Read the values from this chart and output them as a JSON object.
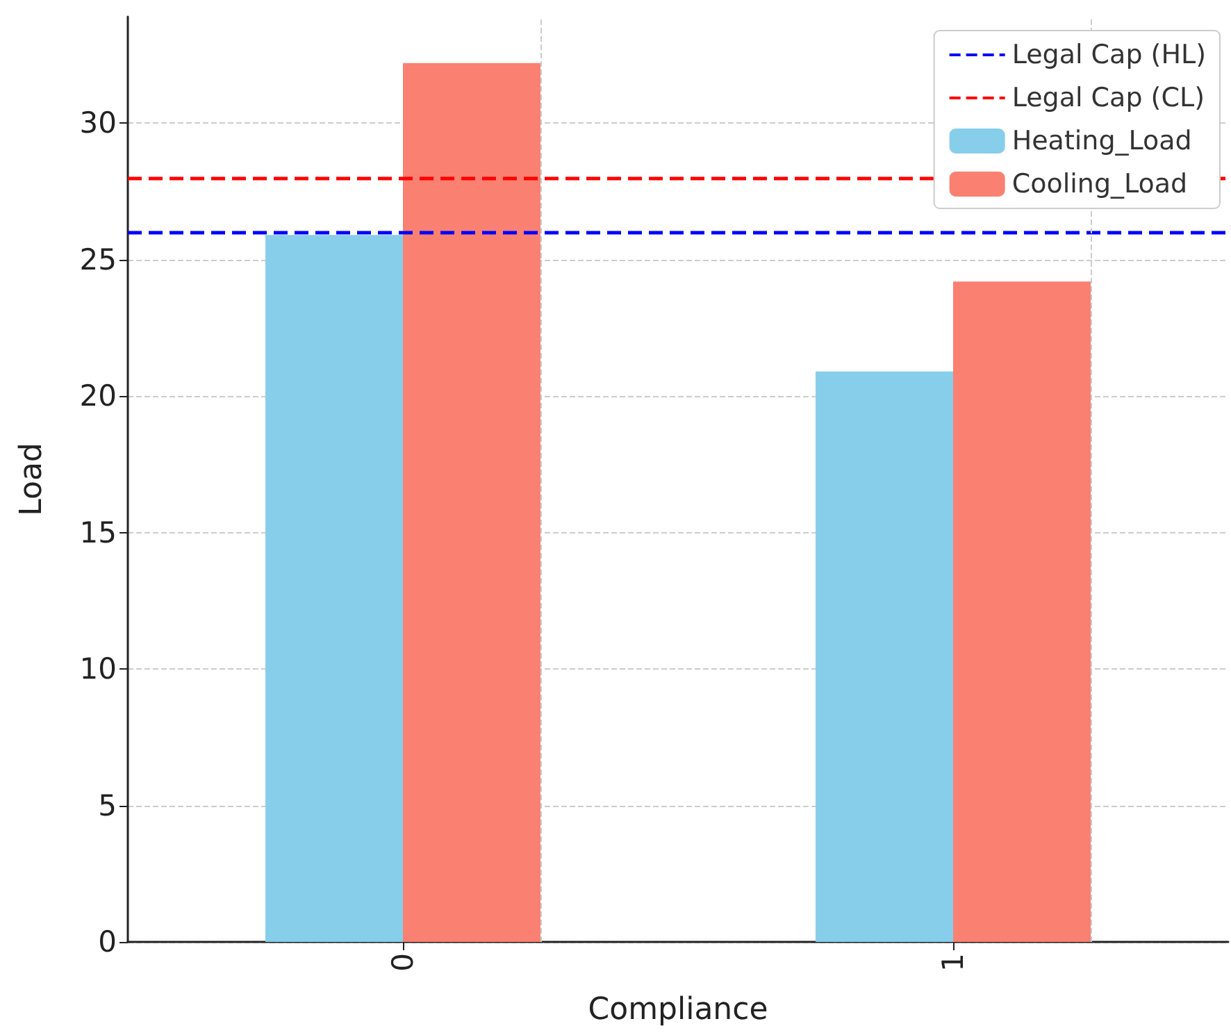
{
  "chart_data": {
    "type": "bar",
    "xlabel": "Compliance",
    "ylabel": "Load",
    "categories": [
      "0",
      "1"
    ],
    "series": [
      {
        "name": "Heating_Load",
        "color": "#87ceeb",
        "values": [
          25.9,
          20.9
        ]
      },
      {
        "name": "Cooling_Load",
        "color": "#fa8072",
        "values": [
          32.2,
          24.2
        ]
      }
    ],
    "ref_lines": [
      {
        "axis": "y",
        "value": 26,
        "label": "Legal Cap (HL)",
        "color": "#0000ff",
        "line_style": "dashed"
      },
      {
        "axis": "y",
        "value": 28,
        "label": "Legal Cap (CL)",
        "color": "#ff0000",
        "line_style": "dashed"
      }
    ],
    "ylim": [
      0,
      33.9
    ],
    "yticks": [
      0,
      5,
      10,
      15,
      20,
      25,
      30
    ],
    "grid": true,
    "legend": "top right"
  }
}
